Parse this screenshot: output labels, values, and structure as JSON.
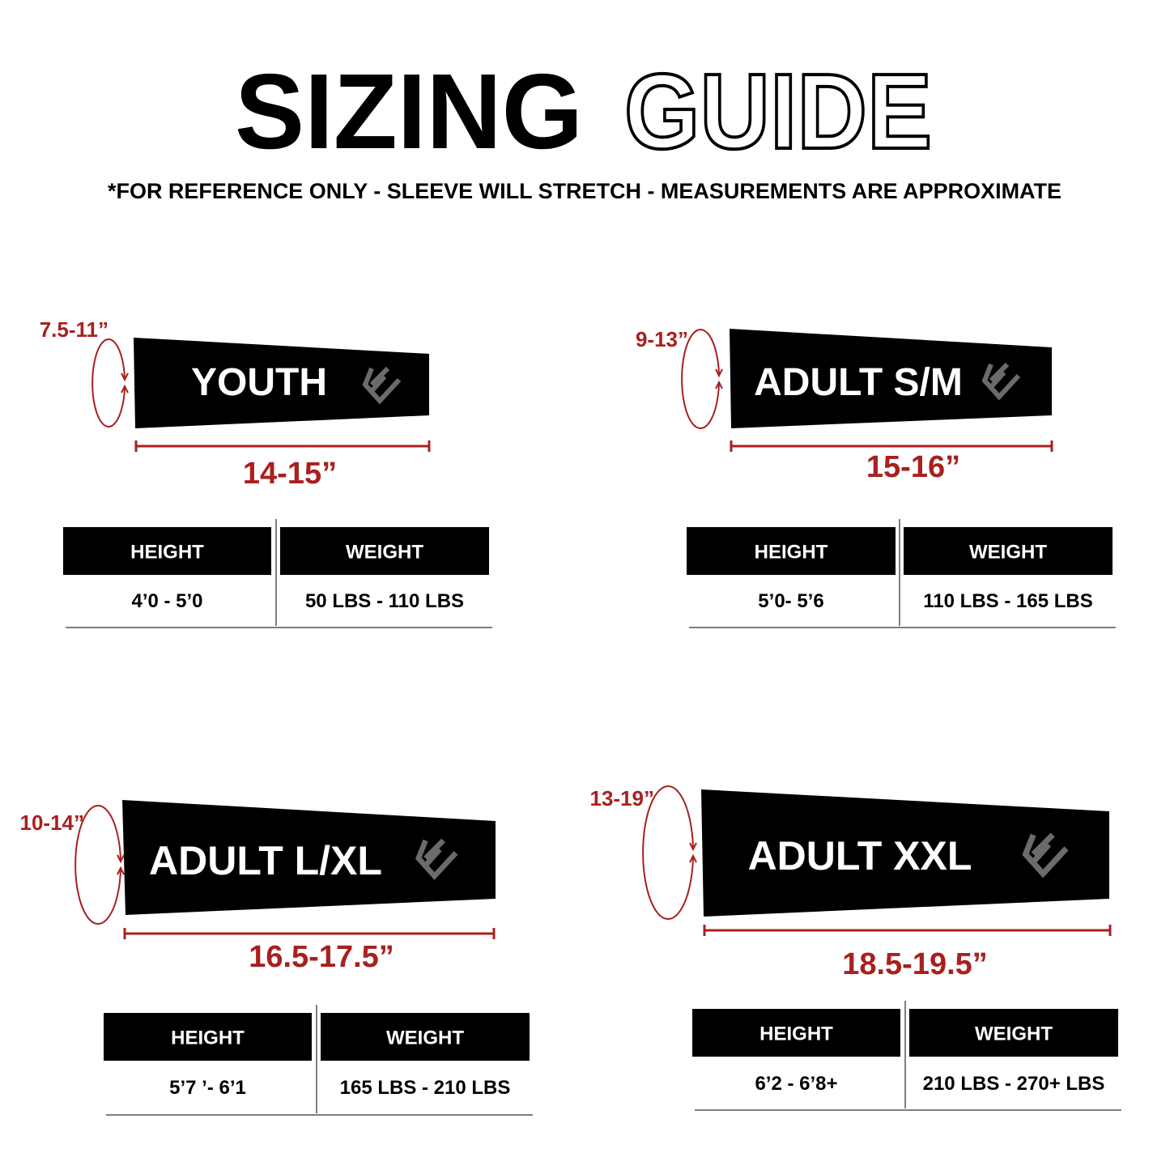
{
  "header": {
    "title_solid": "SIZING",
    "title_outline": "GUIDE",
    "subtitle": "*FOR REFERENCE ONLY - SLEEVE WILL STRETCH - MEASUREMENTS ARE APPROXIMATE"
  },
  "colors": {
    "accent_red": "#a8201f",
    "sleeve_black": "#000000",
    "logo_gray": "#6b6b6b"
  },
  "table_headers": {
    "height": "HEIGHT",
    "weight": "WEIGHT"
  },
  "sizes": [
    {
      "name": "YOUTH",
      "circumference": "7.5-11”",
      "length": "14-15”",
      "height": "4’0 - 5’0",
      "weight": "50 LBS - 110 LBS"
    },
    {
      "name": "ADULT S/M",
      "circumference": "9-13”",
      "length": "15-16”",
      "height": "5’0- 5’6",
      "weight": "110 LBS - 165 LBS"
    },
    {
      "name": "ADULT L/XL",
      "circumference": "10-14”",
      "length": "16.5-17.5”",
      "height": "5’7 ’- 6’1",
      "weight": "165 LBS - 210 LBS"
    },
    {
      "name": "ADULT XXL",
      "circumference": "13-19”",
      "length": "18.5-19.5”",
      "height": "6’2 - 6’8+",
      "weight": "210 LBS - 270+ LBS"
    }
  ]
}
